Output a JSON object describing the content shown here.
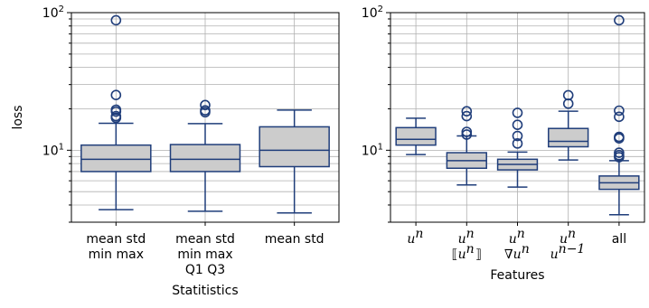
{
  "style": {
    "box_fill": "#cccccc",
    "box_stroke": "#1f3d7a",
    "grid_color": "#b0b0b0"
  },
  "chart_data": [
    {
      "type": "box",
      "xlabel": "Statitistics",
      "ylabel": "loss",
      "yscale": "log",
      "ylim": [
        3.0,
        100
      ],
      "yticks": [
        "10^1",
        "10^2"
      ],
      "grid": true,
      "categories": [
        {
          "lines": [
            "mean std",
            "min max"
          ]
        },
        {
          "lines": [
            "mean std",
            "min max",
            "Q1 Q3"
          ]
        },
        {
          "lines": [
            "mean std"
          ]
        }
      ],
      "boxes": [
        {
          "whislo": 3.7,
          "q1": 7.0,
          "med": 8.6,
          "q3": 10.9,
          "whishi": 15.7,
          "fliers": [
            17.2,
            17.7,
            19.1,
            19.7,
            25.2,
            88.0
          ]
        },
        {
          "whislo": 3.6,
          "q1": 7.0,
          "med": 8.6,
          "q3": 11.0,
          "whishi": 15.6,
          "fliers": [
            18.9,
            19.5,
            21.3
          ]
        },
        {
          "whislo": 3.5,
          "q1": 7.6,
          "med": 10.0,
          "q3": 14.8,
          "whishi": 19.6,
          "fliers": []
        }
      ]
    },
    {
      "type": "box",
      "xlabel": "Features",
      "ylabel": "",
      "yscale": "log",
      "ylim": [
        3.0,
        100
      ],
      "yticks": [
        "10^1",
        "10^2"
      ],
      "grid": true,
      "categories": [
        {
          "math": [
            "u^n"
          ]
        },
        {
          "math": [
            "u^n",
            "[[u^n]]"
          ]
        },
        {
          "math": [
            "u^n",
            "∇u^n"
          ]
        },
        {
          "math": [
            "u^n",
            "u^{n-1}"
          ]
        },
        {
          "lines": [
            "all"
          ]
        }
      ],
      "boxes": [
        {
          "whislo": 9.3,
          "q1": 10.9,
          "med": 12.0,
          "q3": 14.6,
          "whishi": 17.1,
          "fliers": []
        },
        {
          "whislo": 5.6,
          "q1": 7.4,
          "med": 8.4,
          "q3": 9.6,
          "whishi": 12.7,
          "fliers": [
            13.0,
            13.6,
            17.7,
            19.2
          ]
        },
        {
          "whislo": 5.4,
          "q1": 7.2,
          "med": 7.9,
          "q3": 8.6,
          "whishi": 9.7,
          "fliers": [
            11.2,
            12.7,
            15.3,
            18.7
          ]
        },
        {
          "whislo": 8.5,
          "q1": 10.6,
          "med": 11.6,
          "q3": 14.4,
          "whishi": 19.2,
          "fliers": [
            21.8,
            25.1
          ]
        },
        {
          "whislo": 3.4,
          "q1": 5.2,
          "med": 5.8,
          "q3": 6.5,
          "whishi": 8.4,
          "fliers": [
            8.9,
            9.2,
            9.6,
            12.2,
            12.5,
            17.5,
            19.4,
            88.0
          ]
        }
      ]
    }
  ]
}
